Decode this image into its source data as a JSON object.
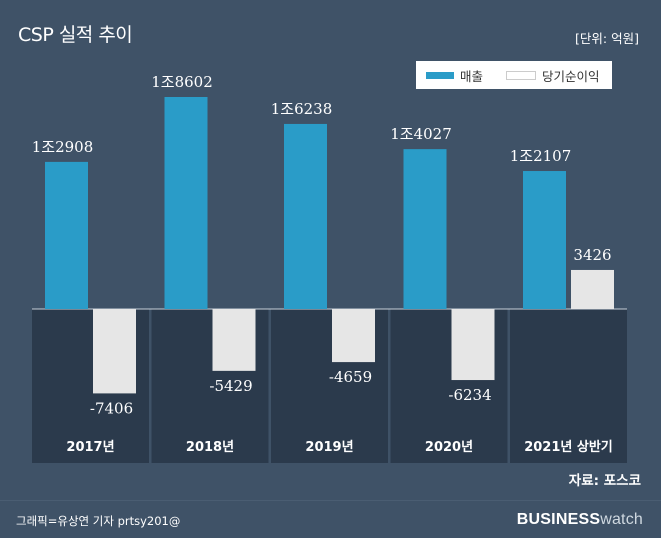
{
  "header": {
    "title": "CSP 실적 추이",
    "unit": "[단위: 억원]"
  },
  "legend": {
    "items": [
      {
        "label": "매출",
        "color": "#2a9cc8"
      },
      {
        "label": "당기순이익",
        "color": "#ffffff"
      }
    ]
  },
  "chart_data": {
    "type": "bar",
    "categories": [
      "2017년",
      "2018년",
      "2019년",
      "2020년",
      "2021년 상반기"
    ],
    "series": [
      {
        "name": "매출",
        "values": [
          12908,
          18602,
          16238,
          14027,
          12107
        ],
        "labels": [
          "1조2908",
          "1조8602",
          "1조6238",
          "1조4027",
          "1조2107"
        ],
        "color": "#2a9cc8"
      },
      {
        "name": "당기순이익",
        "values": [
          -7406,
          -5429,
          -4659,
          -6234,
          3426
        ],
        "labels": [
          "-7406",
          "-5429",
          "-4659",
          "-6234",
          "3426"
        ],
        "color": "#e6e6e6"
      }
    ],
    "ylim": [
      -10000,
      20000
    ]
  },
  "footer": {
    "source": "자료: 포스코",
    "credit": "그래픽=유상연 기자 prtsy201@",
    "brand_bold": "BUSINESS",
    "brand_light": "watch"
  },
  "colors": {
    "background": "#3f5267",
    "negative_panel": "#2b3a4c",
    "revenue": "#2a9cc8",
    "net_income": "#e6e6e6"
  }
}
